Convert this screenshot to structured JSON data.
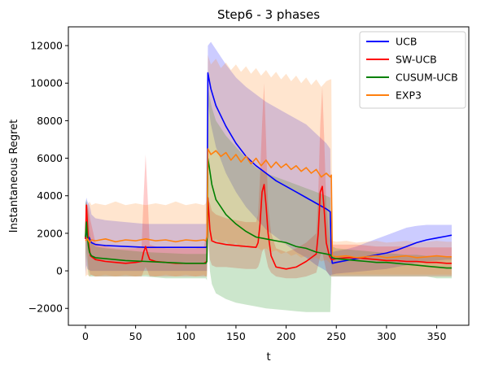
{
  "chart_data": {
    "type": "line",
    "title": "Step6 - 3 phases",
    "xlabel": "t",
    "ylabel": "Instantaneous Regret",
    "xlim": [
      -17,
      382
    ],
    "ylim": [
      -2900,
      13000
    ],
    "xticks": [
      0,
      50,
      100,
      150,
      200,
      250,
      300,
      350
    ],
    "yticks": [
      -2000,
      0,
      2000,
      4000,
      6000,
      8000,
      10000,
      12000
    ],
    "xtick_labels": [
      "0",
      "50",
      "100",
      "150",
      "200",
      "250",
      "300",
      "350"
    ],
    "ytick_labels": [
      "−2000",
      "0",
      "2000",
      "4000",
      "6000",
      "8000",
      "10000",
      "12000"
    ],
    "grid": false,
    "legend_position": "top-right",
    "series": [
      {
        "name": "UCB",
        "color": "#0000ff",
        "x": [
          0,
          1,
          2,
          3,
          4,
          5,
          6,
          10,
          20,
          40,
          60,
          80,
          100,
          118,
          120,
          121,
          122,
          125,
          130,
          140,
          150,
          160,
          170,
          180,
          190,
          200,
          210,
          220,
          230,
          240,
          244,
          245,
          246,
          250,
          260,
          270,
          280,
          290,
          300,
          310,
          320,
          330,
          340,
          350,
          360,
          365
        ],
        "y": [
          1700,
          2200,
          1900,
          1800,
          1750,
          1600,
          1500,
          1400,
          1350,
          1300,
          1250,
          1250,
          1250,
          1250,
          1250,
          1300,
          10550,
          9700,
          8800,
          7700,
          6800,
          6100,
          5600,
          5200,
          4800,
          4500,
          4200,
          3900,
          3600,
          3300,
          3150,
          800,
          400,
          450,
          550,
          650,
          750,
          850,
          950,
          1100,
          1300,
          1500,
          1650,
          1750,
          1850,
          1900
        ],
        "lower": [
          -200,
          300,
          100,
          50,
          50,
          0,
          0,
          0,
          0,
          0,
          0,
          0,
          0,
          0,
          0,
          0,
          9000,
          7800,
          6600,
          5200,
          4200,
          3400,
          2800,
          2200,
          1800,
          1400,
          1000,
          700,
          300,
          0,
          -300,
          -200,
          -200,
          -150,
          -100,
          -50,
          0,
          50,
          100,
          200,
          300,
          400,
          500,
          550,
          600,
          600
        ],
        "upper": [
          3600,
          3900,
          3700,
          3600,
          3500,
          3300,
          3000,
          2800,
          2700,
          2600,
          2500,
          2500,
          2500,
          2500,
          2500,
          2600,
          12000,
          12200,
          11800,
          11000,
          10300,
          9800,
          9400,
          9000,
          8700,
          8400,
          8100,
          7800,
          7300,
          6800,
          6500,
          1600,
          1000,
          1050,
          1150,
          1300,
          1500,
          1700,
          1900,
          2100,
          2300,
          2400,
          2450,
          2450,
          2450,
          2450
        ]
      },
      {
        "name": "SW-UCB",
        "color": "#ff0000",
        "x": [
          0,
          1,
          2,
          3,
          5,
          10,
          20,
          30,
          40,
          50,
          56,
          58,
          60,
          62,
          64,
          70,
          80,
          90,
          100,
          110,
          118,
          121,
          122,
          124,
          126,
          130,
          140,
          150,
          160,
          170,
          172,
          174,
          176,
          178,
          180,
          182,
          185,
          190,
          200,
          210,
          220,
          230,
          232,
          234,
          236,
          238,
          240,
          243,
          245,
          246,
          250,
          260,
          270,
          280,
          290,
          300,
          310,
          320,
          330,
          340,
          350,
          360,
          365
        ],
        "y": [
          1700,
          3500,
          2500,
          1500,
          800,
          600,
          500,
          450,
          400,
          450,
          500,
          1000,
          1300,
          900,
          600,
          500,
          450,
          400,
          400,
          400,
          400,
          500,
          3900,
          2200,
          1600,
          1500,
          1400,
          1350,
          1300,
          1250,
          1500,
          2500,
          4200,
          4600,
          3500,
          2000,
          800,
          200,
          100,
          200,
          500,
          900,
          2000,
          4200,
          4500,
          3200,
          1500,
          800,
          600,
          600,
          650,
          700,
          700,
          650,
          600,
          550,
          550,
          500,
          500,
          450,
          450,
          400,
          400
        ],
        "lower": [
          100,
          1800,
          800,
          100,
          -200,
          -300,
          -300,
          -300,
          -300,
          -300,
          -300,
          0,
          200,
          0,
          -300,
          -300,
          -300,
          -300,
          -300,
          -300,
          -300,
          -300,
          2000,
          600,
          300,
          200,
          200,
          150,
          100,
          100,
          200,
          500,
          1000,
          1200,
          700,
          200,
          -100,
          -300,
          -400,
          -400,
          -300,
          -100,
          300,
          800,
          1000,
          500,
          0,
          -200,
          -300,
          -300,
          -300,
          -300,
          -300,
          -300,
          -300,
          -300,
          -300,
          -300,
          -300,
          -300,
          -300,
          -300,
          -300
        ],
        "upper": [
          3400,
          3700,
          3500,
          3300,
          2700,
          1500,
          1300,
          1200,
          1200,
          1200,
          1300,
          4000,
          6200,
          4000,
          1400,
          1300,
          1200,
          1200,
          1200,
          1200,
          1300,
          2000,
          3800,
          3600,
          3200,
          3000,
          2800,
          2700,
          2600,
          2600,
          3000,
          5000,
          7800,
          10000,
          7000,
          3500,
          2000,
          1200,
          1000,
          1200,
          1500,
          2000,
          4000,
          7800,
          9800,
          7000,
          3500,
          1800,
          1500,
          1400,
          1400,
          1400,
          1400,
          1350,
          1300,
          1300,
          1300,
          1300,
          1250,
          1250,
          1250,
          1250,
          1250
        ]
      },
      {
        "name": "CUSUM-UCB",
        "color": "#008000",
        "x": [
          0,
          1,
          2,
          3,
          4,
          5,
          6,
          10,
          20,
          40,
          60,
          80,
          100,
          118,
          120,
          121,
          122,
          124,
          126,
          130,
          140,
          150,
          160,
          170,
          180,
          190,
          200,
          210,
          220,
          230,
          240,
          244,
          245,
          246,
          250,
          260,
          270,
          280,
          290,
          300,
          310,
          320,
          330,
          340,
          350,
          360,
          365
        ],
        "y": [
          1800,
          2600,
          1800,
          1300,
          1000,
          900,
          800,
          700,
          650,
          550,
          500,
          450,
          400,
          400,
          400,
          500,
          6000,
          5300,
          4600,
          3800,
          3000,
          2500,
          2100,
          1800,
          1700,
          1600,
          1500,
          1300,
          1200,
          1000,
          900,
          850,
          800,
          700,
          650,
          600,
          550,
          500,
          450,
          450,
          400,
          350,
          300,
          250,
          200,
          150,
          150
        ],
        "lower": [
          0,
          1000,
          200,
          -200,
          -300,
          -300,
          -300,
          -300,
          -300,
          -300,
          -300,
          -400,
          -400,
          -400,
          -400,
          -500,
          2000,
          0,
          -700,
          -1200,
          -1500,
          -1700,
          -1800,
          -1900,
          -2000,
          -2050,
          -2100,
          -2150,
          -2200,
          -2200,
          -2200,
          -2200,
          -300,
          -300,
          -300,
          -300,
          -300,
          -300,
          -300,
          -300,
          -300,
          -300,
          -300,
          -300,
          -400,
          -400,
          -400
        ],
        "upper": [
          3600,
          3800,
          3400,
          3000,
          2200,
          1800,
          1500,
          1300,
          1200,
          1100,
          1000,
          950,
          900,
          900,
          900,
          1000,
          9800,
          9200,
          8700,
          8000,
          7200,
          6600,
          6000,
          5500,
          5200,
          5000,
          4800,
          4600,
          4400,
          4200,
          4000,
          3900,
          1500,
          1300,
          1200,
          1150,
          1100,
          1050,
          1000,
          950,
          900,
          850,
          850,
          800,
          800,
          750,
          750
        ]
      },
      {
        "name": "EXP3",
        "color": "#ff7f0e",
        "x": [
          0,
          2,
          4,
          6,
          10,
          20,
          30,
          40,
          50,
          60,
          70,
          80,
          90,
          100,
          110,
          118,
          120,
          121,
          122,
          125,
          130,
          135,
          140,
          145,
          150,
          155,
          160,
          165,
          170,
          175,
          180,
          185,
          190,
          195,
          200,
          205,
          210,
          215,
          220,
          225,
          230,
          235,
          240,
          244,
          245,
          246,
          250,
          260,
          270,
          280,
          290,
          300,
          310,
          320,
          330,
          340,
          350,
          360,
          365
        ],
        "y": [
          1600,
          1700,
          1500,
          1650,
          1600,
          1700,
          1550,
          1650,
          1600,
          1700,
          1600,
          1650,
          1550,
          1650,
          1600,
          1650,
          1600,
          1800,
          6500,
          6200,
          6400,
          6100,
          6300,
          5900,
          6200,
          5800,
          6100,
          5700,
          6000,
          5600,
          5900,
          5500,
          5800,
          5500,
          5700,
          5400,
          5600,
          5300,
          5500,
          5200,
          5400,
          5000,
          5200,
          5000,
          5100,
          800,
          750,
          800,
          700,
          750,
          800,
          700,
          750,
          800,
          700,
          750,
          800,
          750,
          750
        ],
        "lower": [
          -300,
          -200,
          -300,
          -200,
          -300,
          -200,
          -300,
          -200,
          -300,
          -200,
          -300,
          -200,
          -300,
          -200,
          -300,
          -200,
          -300,
          -200,
          1800,
          1500,
          1700,
          1400,
          1600,
          1300,
          1500,
          1200,
          1400,
          1200,
          1300,
          1100,
          1200,
          1000,
          1100,
          900,
          1000,
          800,
          900,
          700,
          800,
          600,
          700,
          500,
          600,
          400,
          400,
          -200,
          -200,
          -200,
          -200,
          -200,
          -200,
          -200,
          -200,
          -200,
          -200,
          -200,
          -200,
          -200,
          -200
        ],
        "upper": [
          3600,
          3500,
          3700,
          3500,
          3600,
          3500,
          3700,
          3500,
          3600,
          3500,
          3600,
          3500,
          3700,
          3500,
          3600,
          3500,
          3600,
          3800,
          11500,
          11000,
          11300,
          10800,
          11100,
          10700,
          11000,
          10600,
          10900,
          10500,
          10800,
          10400,
          10700,
          10300,
          10600,
          10200,
          10500,
          10100,
          10400,
          10000,
          10300,
          9900,
          10200,
          9800,
          10100,
          10200,
          10200,
          1600,
          1550,
          1600,
          1500,
          1550,
          1600,
          1500,
          1550,
          1600,
          1500,
          1550,
          1600,
          1550,
          1550
        ]
      }
    ]
  }
}
